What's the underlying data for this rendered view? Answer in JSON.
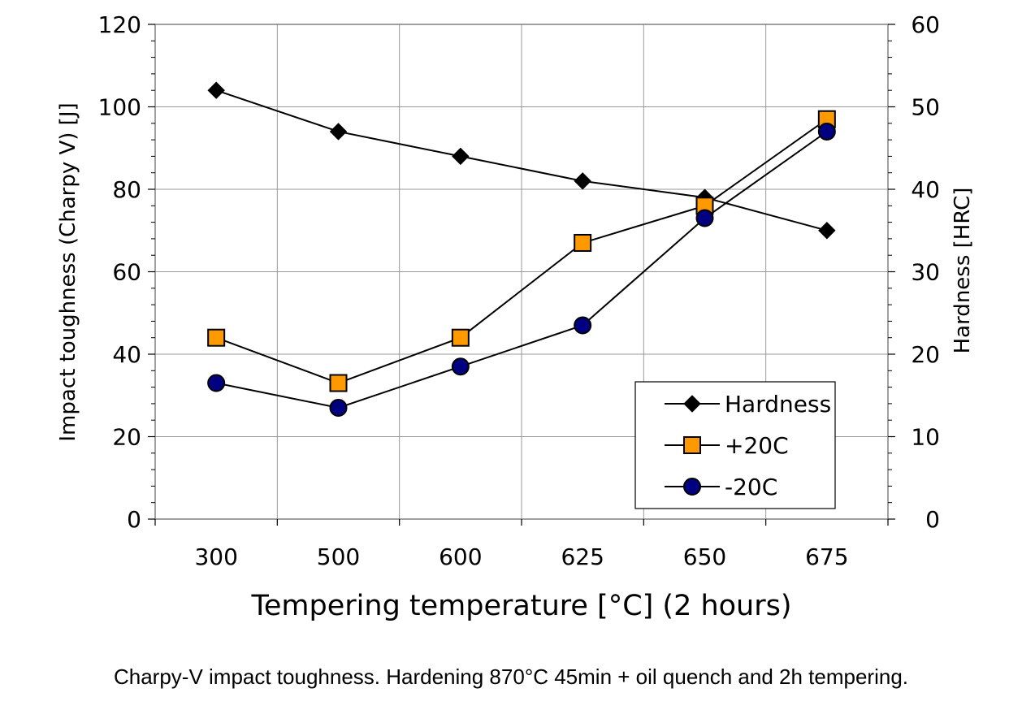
{
  "chart_data": {
    "type": "line",
    "categories": [
      "300",
      "500",
      "600",
      "625",
      "650",
      "675"
    ],
    "xlabel": "Tempering temperature [°C] (2 hours)",
    "ylabel": "Impact toughness (Charpy V) [J]",
    "y2label": "Hardness [HRC]",
    "ylim": [
      0,
      120
    ],
    "y2lim": [
      0,
      60
    ],
    "yticks": [
      "0",
      "20",
      "40",
      "60",
      "80",
      "100",
      "120"
    ],
    "y2ticks": [
      "0",
      "10",
      "20",
      "30",
      "40",
      "50",
      "60"
    ],
    "grid": true,
    "legend_position": "bottom-right",
    "series": [
      {
        "name": "Hardness",
        "axis": "right",
        "marker": "diamond",
        "color": "#000000",
        "values": [
          52,
          47,
          44,
          41,
          39,
          35
        ]
      },
      {
        "name": "+20C",
        "axis": "left",
        "marker": "square",
        "color": "#FF9900",
        "values": [
          44,
          33,
          44,
          67,
          76,
          97
        ]
      },
      {
        "name": "-20C",
        "axis": "left",
        "marker": "circle",
        "color": "#000080",
        "values": [
          33,
          27,
          37,
          47,
          73,
          94
        ]
      }
    ]
  },
  "caption": "Charpy-V impact toughness. Hardening 870°C 45min + oil quench and 2h tempering."
}
